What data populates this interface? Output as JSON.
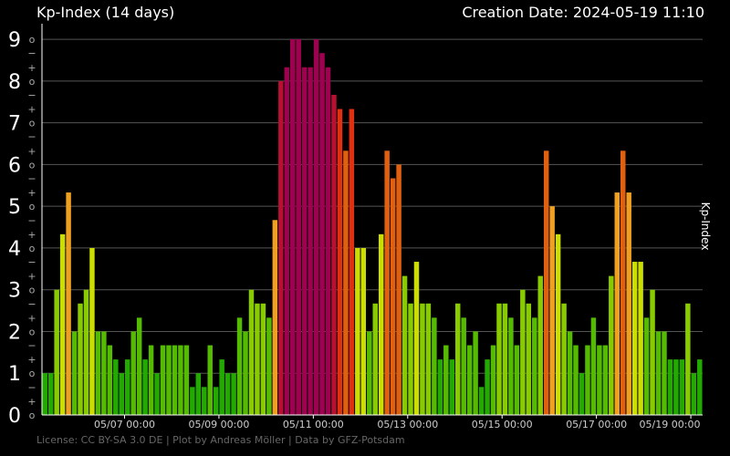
{
  "chart_data": {
    "type": "bar",
    "title": "Kp-Index (14 days)",
    "creation_date": "Creation Date: 2024-05-19 11:10",
    "ylabel": "Kp-Index",
    "license": "License: CC BY-SA 3.0 DE | Plot by Andreas Möller | Data by GFZ-Potsdam",
    "ylim": [
      0,
      9.33
    ],
    "y_major_ticks": [
      "0",
      "1",
      "2",
      "3",
      "4",
      "5",
      "6",
      "7",
      "8",
      "9"
    ],
    "y_minor_plus": "+",
    "y_minor_zero": "o",
    "y_minor_minus": "−",
    "x_tick_labels": [
      "05/07 00:00",
      "05/09 00:00",
      "05/11 00:00",
      "05/13 00:00",
      "05/15 00:00",
      "05/17 00:00",
      "05/19 00:00"
    ],
    "x_tick_bar_index": [
      14,
      30,
      46,
      62,
      78,
      94,
      110
    ],
    "bin_hours": 3,
    "values": [
      1.0,
      1.0,
      3.0,
      4.33,
      5.33,
      2.0,
      2.67,
      3.0,
      4.0,
      2.0,
      2.0,
      1.67,
      1.33,
      1.0,
      1.33,
      2.0,
      2.33,
      1.33,
      1.67,
      1.0,
      1.67,
      1.67,
      1.67,
      1.67,
      1.67,
      0.67,
      1.0,
      0.67,
      1.67,
      0.67,
      1.33,
      1.0,
      1.0,
      2.33,
      2.0,
      3.0,
      2.67,
      2.67,
      2.33,
      4.67,
      8.0,
      8.33,
      9.0,
      9.0,
      8.33,
      8.33,
      9.0,
      8.67,
      8.33,
      7.67,
      7.33,
      6.33,
      7.33,
      4.0,
      4.0,
      2.0,
      2.67,
      4.33,
      6.33,
      5.67,
      6.0,
      3.33,
      2.67,
      3.67,
      2.67,
      2.67,
      2.33,
      1.33,
      1.67,
      1.33,
      2.67,
      2.33,
      1.67,
      2.0,
      0.67,
      1.33,
      1.67,
      2.67,
      2.67,
      2.33,
      1.67,
      3.0,
      2.67,
      2.33,
      3.33,
      6.33,
      5.0,
      4.33,
      2.67,
      2.0,
      1.67,
      1.0,
      1.67,
      2.33,
      1.67,
      1.67,
      3.33,
      5.33,
      6.33,
      5.33,
      3.67,
      3.67,
      2.33,
      3.0,
      2.0,
      2.0,
      1.33,
      1.33,
      1.33,
      2.67,
      1.0,
      1.33
    ],
    "colors": {
      "quiet": "#22aa00",
      "low": "#55bb00",
      "mid": "#88cc00",
      "unsettled": "#ccdd00",
      "active": "#f0a020",
      "storm": "#e06010",
      "strong": "#e03010",
      "severe": "#b81030",
      "extreme": "#a00050",
      "grid": "#555555",
      "axis": "#ffffff"
    }
  }
}
